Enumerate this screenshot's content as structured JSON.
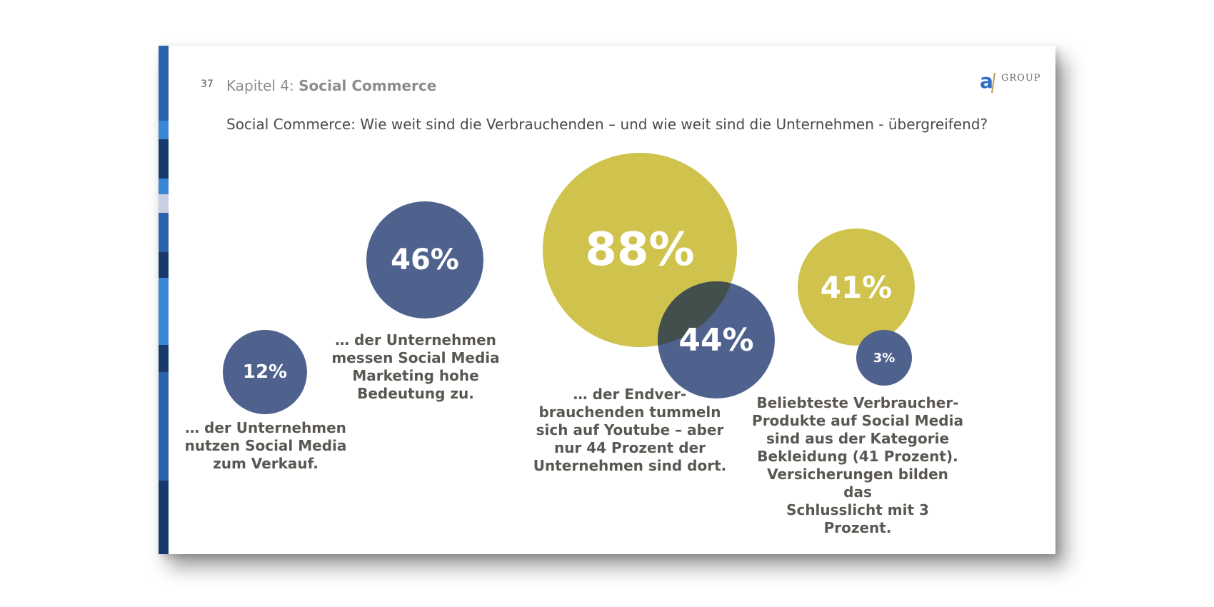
{
  "slide": {
    "page_number": "37",
    "chapter_prefix": "Kapitel 4: ",
    "chapter_title": "Social Commerce",
    "question": "Social Commerce: Wie weit sind die Verbrauchenden – und wie weit sind die Unternehmen - übergreifend?"
  },
  "logo": {
    "letter": "a",
    "word": "GROUP"
  },
  "colors": {
    "blue": "#4f628e",
    "yellow": "#cfc34e",
    "overlap": "#424f4d",
    "stripe": "#2f6fc4"
  },
  "stats": [
    {
      "value": "12%",
      "color": "blue",
      "caption": [
        "… der Unternehmen",
        "nutzen Social Media",
        "zum Verkauf."
      ]
    },
    {
      "value": "46%",
      "color": "blue",
      "caption": [
        "… der Unternehmen",
        "messen Social Media",
        "Marketing hohe",
        "Bedeutung zu."
      ]
    },
    {
      "value": "88%",
      "color": "yellow"
    },
    {
      "value": "44%",
      "color": "blue",
      "caption": [
        "… der Endver-",
        "brauchenden tummeln",
        "sich auf Youtube – aber",
        "nur 44 Prozent der",
        "Unternehmen sind dort."
      ]
    },
    {
      "value": "41%",
      "color": "yellow"
    },
    {
      "value": "3%",
      "color": "blue",
      "caption": [
        "Beliebteste Verbraucher-",
        "Produkte auf Social Media",
        "sind aus der Kategorie",
        "Bekleidung (41 Prozent).",
        "Versicherungen bilden das",
        "Schlusslicht mit 3 Prozent."
      ]
    }
  ]
}
